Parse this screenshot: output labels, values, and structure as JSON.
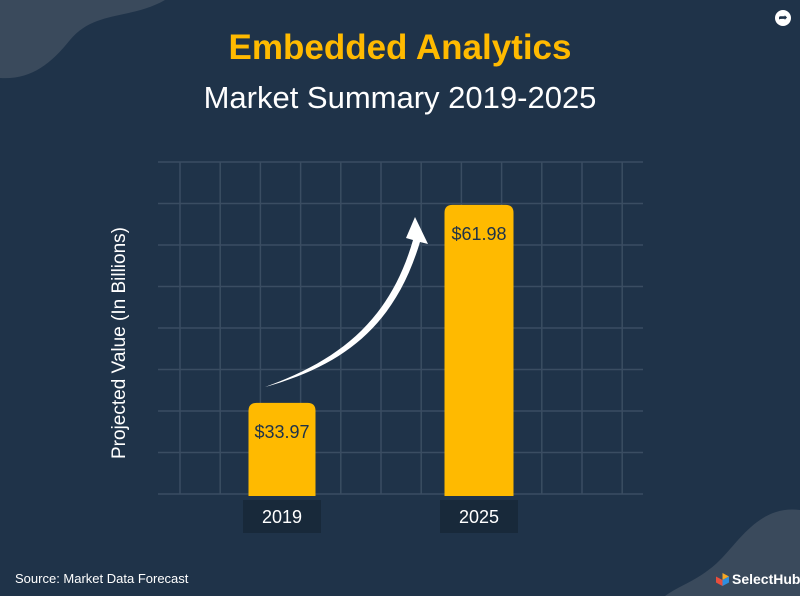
{
  "header": {
    "title": "Embedded Analytics",
    "subtitle": "Market Summary 2019-2025"
  },
  "footer": {
    "source": "Source: Market Data Forecast",
    "logo_text": "SelectHub"
  },
  "icons": {
    "share": "share-arrow-icon",
    "logo": "selecthub-logo-icon"
  },
  "colors": {
    "background": "#1f3349",
    "bar": "#ffba00",
    "title": "#ffba00",
    "label_box": "#18293a",
    "grid": "#3a4d62"
  },
  "chart_data": {
    "type": "bar",
    "title": "Embedded Analytics Market Summary 2019-2025",
    "categories": [
      "2019",
      "2025"
    ],
    "values": [
      33.97,
      61.98
    ],
    "data_labels": [
      "$33.97",
      "$61.98"
    ],
    "xlabel": "",
    "ylabel": "Projected Value (In Billions)",
    "grid": true,
    "annotation": "upward growth arrow from 2019 to 2025"
  }
}
